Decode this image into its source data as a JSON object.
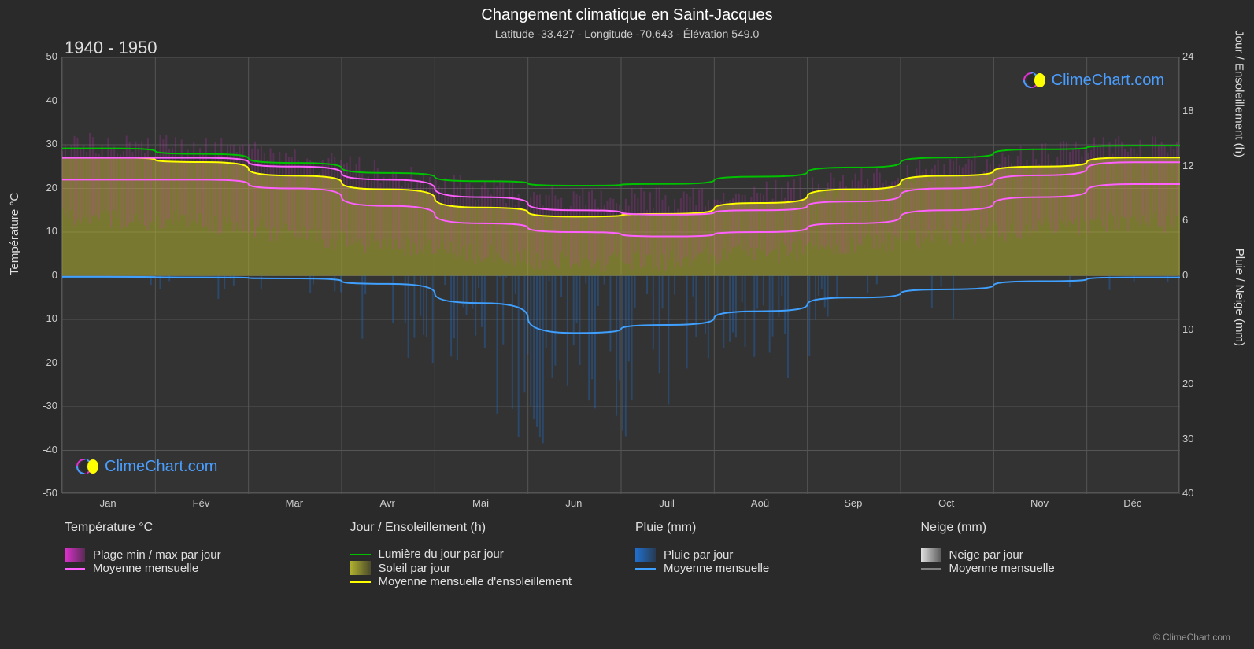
{
  "title": "Changement climatique en Saint-Jacques",
  "subtitle": "Latitude -33.427 - Longitude -70.643 - Élévation 549.0",
  "period_label": "1940 - 1950",
  "axis_labels": {
    "left": "Température °C",
    "right_top": "Jour / Ensoleillement (h)",
    "right_bottom": "Pluie / Neige (mm)"
  },
  "background_color": "#2a2a2a",
  "plot_background": "#333333",
  "grid_color": "#555555",
  "text_color": "#e0e0e0",
  "subtext_color": "#cccccc",
  "logo_text": "ClimeChart.com",
  "logo_color": "#4a9eff",
  "y_axis_left": {
    "min": -50,
    "max": 50,
    "step": 10,
    "ticks": [
      50,
      40,
      30,
      20,
      10,
      0,
      -10,
      -20,
      -30,
      -40,
      -50
    ]
  },
  "y_axis_right_top": {
    "min": 0,
    "max": 24,
    "step": 6,
    "ticks": [
      24,
      18,
      12,
      6,
      0
    ]
  },
  "y_axis_right_bottom": {
    "min": 0,
    "max": 40,
    "step": 10,
    "ticks": [
      0,
      10,
      20,
      30,
      40
    ]
  },
  "x_axis": {
    "labels": [
      "Jan",
      "Fév",
      "Mar",
      "Avr",
      "Mai",
      "Jun",
      "Juil",
      "Aoû",
      "Sep",
      "Oct",
      "Nov",
      "Déc"
    ]
  },
  "legend": {
    "temperature": {
      "header": "Température °C",
      "items": [
        {
          "label": "Plage min / max par jour",
          "type": "swatch",
          "color": "#e030d0"
        },
        {
          "label": "Moyenne mensuelle",
          "type": "line",
          "color": "#ff60ff"
        }
      ]
    },
    "daylight": {
      "header": "Jour / Ensoleillement (h)",
      "items": [
        {
          "label": "Lumière du jour par jour",
          "type": "line",
          "color": "#00c000"
        },
        {
          "label": "Soleil par jour",
          "type": "swatch",
          "color": "#b0b030"
        },
        {
          "label": "Moyenne mensuelle d'ensoleillement",
          "type": "line",
          "color": "#ffff00"
        }
      ]
    },
    "rain": {
      "header": "Pluie (mm)",
      "items": [
        {
          "label": "Pluie par jour",
          "type": "swatch",
          "color": "#2070d0"
        },
        {
          "label": "Moyenne mensuelle",
          "type": "line",
          "color": "#40a0ff"
        }
      ]
    },
    "snow": {
      "header": "Neige (mm)",
      "items": [
        {
          "label": "Neige par jour",
          "type": "swatch",
          "color": "#e0e0e0"
        },
        {
          "label": "Moyenne mensuelle",
          "type": "line",
          "color": "#808080"
        }
      ]
    }
  },
  "series": {
    "temp_max_band": {
      "color": "#e030d0",
      "values": [
        30,
        30,
        28,
        25,
        21,
        18,
        17,
        18,
        20,
        23,
        26,
        29
      ]
    },
    "temp_min_band": {
      "color": "#e030d0",
      "values": [
        13,
        13,
        11,
        8,
        6,
        4,
        3,
        4,
        6,
        8,
        10,
        12
      ]
    },
    "temp_mean_upper": {
      "color": "#ff60ff",
      "values": [
        27,
        27,
        25,
        22,
        18,
        15,
        14,
        15,
        17,
        20,
        23,
        26
      ]
    },
    "temp_mean_lower": {
      "color": "#ff60ff",
      "values": [
        22,
        22,
        20,
        16,
        12,
        10,
        9,
        10,
        12,
        15,
        18,
        21
      ]
    },
    "daylight": {
      "color": "#00c000",
      "values": [
        14.0,
        13.4,
        12.4,
        11.3,
        10.4,
        9.9,
        10.1,
        10.9,
        11.9,
        13.0,
        13.9,
        14.3
      ]
    },
    "sunshine_mean": {
      "color": "#ffff00",
      "values": [
        13.0,
        12.5,
        11.0,
        9.5,
        7.5,
        6.5,
        6.8,
        8.0,
        9.5,
        11.0,
        12.0,
        13.0
      ]
    },
    "sunshine_band": {
      "color": "#b0b030",
      "values": [
        13.0,
        12.5,
        11.0,
        9.5,
        7.5,
        6.5,
        6.8,
        8.0,
        9.5,
        11.0,
        12.0,
        13.0
      ]
    },
    "rain_mean": {
      "color": "#40a0ff",
      "values": [
        0.2,
        0.3,
        0.5,
        1.5,
        5.0,
        10.5,
        9.0,
        6.5,
        4.0,
        2.5,
        1.0,
        0.3
      ]
    },
    "rain_daily_max": {
      "color": "#2070d0",
      "values": [
        2,
        3,
        5,
        10,
        22,
        35,
        30,
        25,
        18,
        12,
        6,
        3
      ]
    }
  },
  "copyright": "© ClimeChart.com"
}
